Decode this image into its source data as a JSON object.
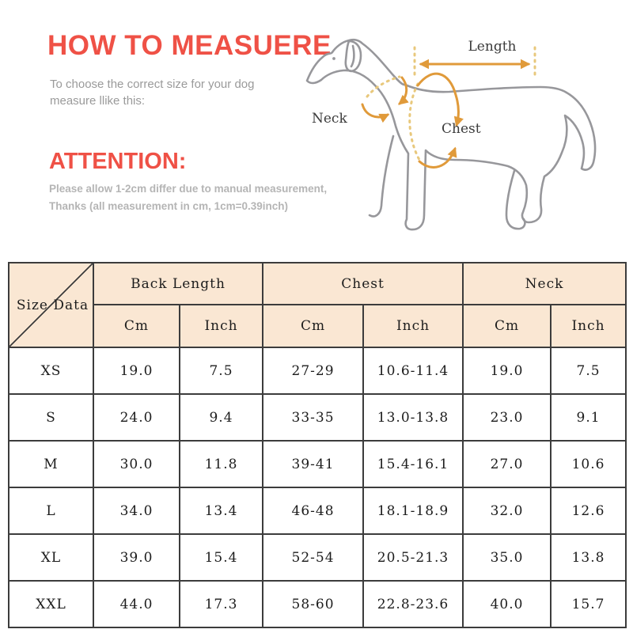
{
  "header": {
    "title": "HOW TO MEASUERE",
    "subtitle_line1": "To choose the correct size for your dog",
    "subtitle_line2": "measure llike this:"
  },
  "attention": {
    "heading": "ATTENTION:",
    "note_line1": "Please allow 1-2cm differ due to manual measurement,",
    "note_line2": "Thanks (all measurement in cm, 1cm=0.39inch)"
  },
  "diagram": {
    "labels": {
      "length": "Length",
      "neck": "Neck",
      "chest": "Chest"
    }
  },
  "colors": {
    "accent_red": "#ef5146",
    "subtitle_gray": "#9a9a9a",
    "note_gray": "#b5b5b5",
    "table_header_bg": "#fae7d3",
    "table_border": "#3c3c3c",
    "dog_outline_gray": "#97979b",
    "annotation_orange": "#e09a3a",
    "annotation_pale_orange": "#e8c87c"
  },
  "table": {
    "corner_label": "Size Data",
    "groups": [
      {
        "label": "Back Length"
      },
      {
        "label": "Chest"
      },
      {
        "label": "Neck"
      }
    ],
    "unit_cm": "Cm",
    "unit_inch": "Inch",
    "rows": [
      {
        "size": "XS",
        "values": [
          "19.0",
          "7.5",
          "27-29",
          "10.6-11.4",
          "19.0",
          "7.5"
        ]
      },
      {
        "size": "S",
        "values": [
          "24.0",
          "9.4",
          "33-35",
          "13.0-13.8",
          "23.0",
          "9.1"
        ]
      },
      {
        "size": "M",
        "values": [
          "30.0",
          "11.8",
          "39-41",
          "15.4-16.1",
          "27.0",
          "10.6"
        ]
      },
      {
        "size": "L",
        "values": [
          "34.0",
          "13.4",
          "46-48",
          "18.1-18.9",
          "32.0",
          "12.6"
        ]
      },
      {
        "size": "XL",
        "values": [
          "39.0",
          "15.4",
          "52-54",
          "20.5-21.3",
          "35.0",
          "13.8"
        ]
      },
      {
        "size": "XXL",
        "values": [
          "44.0",
          "17.3",
          "58-60",
          "22.8-23.6",
          "40.0",
          "15.7"
        ]
      }
    ]
  }
}
